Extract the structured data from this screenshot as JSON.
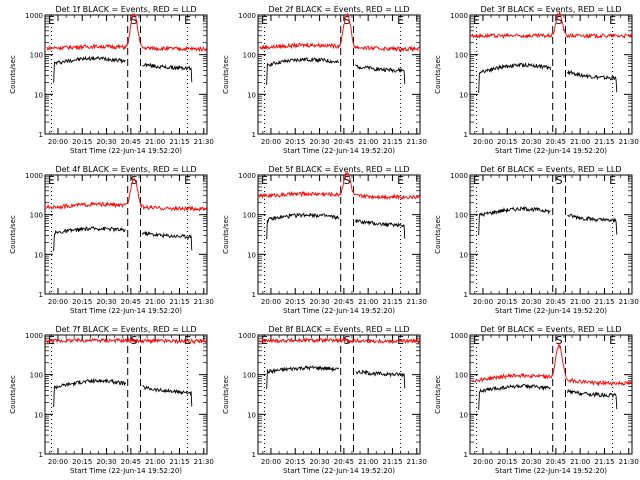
{
  "chart_data": [
    {
      "type": "line",
      "title": "Det 1f BLACK = Events, RED = LLD",
      "xlabel": "Start Time (22-Jun-14 19:52:20)",
      "ylabel": "Counts/sec",
      "xticks": [
        "20:00",
        "20:15",
        "20:30",
        "20:45",
        "21:00",
        "21:15",
        "21:30"
      ],
      "xlim": [
        "19:52",
        "21:32"
      ],
      "yscale": "log",
      "ylim": [
        1,
        1000
      ],
      "yticks": [
        "1",
        "10",
        "100",
        "1000"
      ],
      "markers": [
        {
          "label": "E",
          "x": "19:56"
        },
        {
          "label": "S",
          "x": "20:47"
        },
        {
          "label": "E",
          "x": "21:20"
        }
      ],
      "series": [
        {
          "color": "#000000",
          "start": "19:57",
          "end": "21:23",
          "base": "45",
          "hump_x": "20:23",
          "hump_h": "1.8",
          "gap": [
            "20:42",
            "20:52"
          ],
          "peak": "0"
        },
        {
          "color": "#ff0000",
          "start": "19:53",
          "end": "21:32",
          "base": "140",
          "hump_x": "20:25",
          "hump_h": "1.15",
          "gap": null,
          "peak": "900"
        }
      ]
    },
    {
      "type": "line",
      "title": "Det 2f BLACK = Events, RED = LLD",
      "xlabel": "Start Time (22-Jun-14 19:52:20)",
      "ylabel": "Counts/sec",
      "xticks": [
        "20:00",
        "20:15",
        "20:30",
        "20:45",
        "21:00",
        "21:15",
        "21:30"
      ],
      "xlim": [
        "19:52",
        "21:32"
      ],
      "yscale": "log",
      "ylim": [
        1,
        1000
      ],
      "yticks": [
        "1",
        "10",
        "100",
        "1000"
      ],
      "markers": [
        {
          "label": "E",
          "x": "19:56"
        },
        {
          "label": "S",
          "x": "20:47"
        },
        {
          "label": "E",
          "x": "21:20"
        }
      ],
      "series": [
        {
          "color": "#000000",
          "start": "19:57",
          "end": "21:23",
          "base": "40",
          "hump_x": "20:23",
          "hump_h": "1.9",
          "gap": [
            "20:42",
            "20:52"
          ],
          "peak": "0"
        },
        {
          "color": "#ff0000",
          "start": "19:53",
          "end": "21:32",
          "base": "140",
          "hump_x": "20:25",
          "hump_h": "1.25",
          "gap": null,
          "peak": "900"
        }
      ]
    },
    {
      "type": "line",
      "title": "Det 3f BLACK = Events, RED = LLD",
      "xlabel": "Start Time (22-Jun-14 19:52:20)",
      "ylabel": "Counts/sec",
      "xticks": [
        "20:00",
        "20:15",
        "20:30",
        "20:45",
        "21:00",
        "21:15",
        "21:30"
      ],
      "xlim": [
        "19:52",
        "21:32"
      ],
      "yscale": "log",
      "ylim": [
        1,
        1000
      ],
      "yticks": [
        "1",
        "10",
        "100",
        "1000"
      ],
      "markers": [
        {
          "label": "E",
          "x": "19:56"
        },
        {
          "label": "S",
          "x": "20:47"
        },
        {
          "label": "E",
          "x": "21:20"
        }
      ],
      "series": [
        {
          "color": "#000000",
          "start": "19:57",
          "end": "21:23",
          "base": "25",
          "hump_x": "20:25",
          "hump_h": "2.2",
          "gap": [
            "20:42",
            "20:52"
          ],
          "peak": "0"
        },
        {
          "color": "#ff0000",
          "start": "19:53",
          "end": "21:32",
          "base": "300",
          "hump_x": "20:25",
          "hump_h": "1.0",
          "gap": null,
          "peak": "800"
        }
      ]
    },
    {
      "type": "line",
      "title": "Det 4f BLACK = Events, RED = LLD",
      "xlabel": "Start Time (22-Jun-14 19:52:20)",
      "ylabel": "Counts/sec",
      "xticks": [
        "20:00",
        "20:15",
        "20:30",
        "20:45",
        "21:00",
        "21:15",
        "21:30"
      ],
      "xlim": [
        "19:52",
        "21:32"
      ],
      "yscale": "log",
      "ylim": [
        1,
        1000
      ],
      "yticks": [
        "1",
        "10",
        "100",
        "1000"
      ],
      "markers": [
        {
          "label": "E",
          "x": "19:56"
        },
        {
          "label": "S",
          "x": "20:47"
        },
        {
          "label": "E",
          "x": "21:20"
        }
      ],
      "series": [
        {
          "color": "#000000",
          "start": "19:57",
          "end": "21:23",
          "base": "28",
          "hump_x": "20:25",
          "hump_h": "1.6",
          "gap": [
            "20:42",
            "20:52"
          ],
          "peak": "0"
        },
        {
          "color": "#ff0000",
          "start": "19:53",
          "end": "21:32",
          "base": "140",
          "hump_x": "20:25",
          "hump_h": "1.3",
          "gap": null,
          "peak": "700"
        }
      ]
    },
    {
      "type": "line",
      "title": "Det 5f BLACK = Events, RED = LLD",
      "xlabel": "Start Time (22-Jun-14 19:52:20)",
      "ylabel": "Counts/sec",
      "xticks": [
        "20:00",
        "20:15",
        "20:30",
        "20:45",
        "21:00",
        "21:15",
        "21:30"
      ],
      "xlim": [
        "19:52",
        "21:32"
      ],
      "yscale": "log",
      "ylim": [
        1,
        1000
      ],
      "yticks": [
        "1",
        "10",
        "100",
        "1000"
      ],
      "markers": [
        {
          "label": "E",
          "x": "19:56"
        },
        {
          "label": "S",
          "x": "20:47"
        },
        {
          "label": "E",
          "x": "21:20"
        }
      ],
      "series": [
        {
          "color": "#000000",
          "start": "19:57",
          "end": "21:23",
          "base": "55",
          "hump_x": "20:23",
          "hump_h": "1.8",
          "gap": [
            "20:42",
            "20:52"
          ],
          "peak": "0"
        },
        {
          "color": "#ff0000",
          "start": "19:53",
          "end": "21:32",
          "base": "280",
          "hump_x": "20:25",
          "hump_h": "1.2",
          "gap": null,
          "peak": "900"
        }
      ]
    },
    {
      "type": "line",
      "title": "Det 6f BLACK = Events, RED = LLD",
      "xlabel": "Start Time (22-Jun-14 19:52:20)",
      "ylabel": "Counts/sec",
      "xticks": [
        "20:00",
        "20:15",
        "20:30",
        "20:45",
        "21:00",
        "21:15",
        "21:30"
      ],
      "xlim": [
        "19:52",
        "21:32"
      ],
      "yscale": "log",
      "ylim": [
        1,
        1000
      ],
      "yticks": [
        "1",
        "10",
        "100",
        "1000"
      ],
      "markers": [
        {
          "label": "E",
          "x": "19:56"
        },
        {
          "label": "S",
          "x": "20:47"
        },
        {
          "label": "E",
          "x": "21:20"
        }
      ],
      "series": [
        {
          "color": "#000000",
          "start": "19:57",
          "end": "21:23",
          "base": "70",
          "hump_x": "20:25",
          "hump_h": "2.0",
          "gap": [
            "20:42",
            "20:52"
          ],
          "peak": "0"
        }
      ]
    },
    {
      "type": "line",
      "title": "Det 7f BLACK = Events, RED = LLD",
      "xlabel": "Start Time (22-Jun-14 19:52:20)",
      "ylabel": "Counts/sec",
      "xticks": [
        "20:00",
        "20:15",
        "20:30",
        "20:45",
        "21:00",
        "21:15",
        "21:30"
      ],
      "xlim": [
        "19:52",
        "21:32"
      ],
      "yscale": "log",
      "ylim": [
        1,
        1000
      ],
      "yticks": [
        "1",
        "10",
        "100",
        "1000"
      ],
      "markers": [
        {
          "label": "E",
          "x": "19:56"
        },
        {
          "label": "S",
          "x": "20:47"
        },
        {
          "label": "E",
          "x": "21:20"
        }
      ],
      "series": [
        {
          "color": "#000000",
          "start": "19:57",
          "end": "21:23",
          "base": "35",
          "hump_x": "20:25",
          "hump_h": "2.0",
          "gap": [
            "20:42",
            "20:52"
          ],
          "peak": "0"
        },
        {
          "color": "#ff0000",
          "start": "19:53",
          "end": "21:32",
          "base": "700",
          "hump_x": "20:25",
          "hump_h": "1.05",
          "gap": null,
          "peak": "0"
        }
      ]
    },
    {
      "type": "line",
      "title": "Det 8f BLACK = Events, RED = LLD",
      "xlabel": "Start Time (22-Jun-14 19:52:20)",
      "ylabel": "Counts/sec",
      "xticks": [
        "20:00",
        "20:15",
        "20:30",
        "20:45",
        "21:00",
        "21:15",
        "21:30"
      ],
      "xlim": [
        "19:52",
        "21:32"
      ],
      "yscale": "log",
      "ylim": [
        1,
        1000
      ],
      "yticks": [
        "1",
        "10",
        "100",
        "1000"
      ],
      "markers": [
        {
          "label": "E",
          "x": "19:56"
        },
        {
          "label": "S",
          "x": "20:47"
        },
        {
          "label": "E",
          "x": "21:20"
        }
      ],
      "series": [
        {
          "color": "#000000",
          "start": "19:57",
          "end": "21:23",
          "base": "100",
          "hump_x": "20:25",
          "hump_h": "1.5",
          "gap": [
            "20:42",
            "20:52"
          ],
          "peak": "0"
        },
        {
          "color": "#ff0000",
          "start": "19:53",
          "end": "21:32",
          "base": "700",
          "hump_x": "20:25",
          "hump_h": "1.05",
          "gap": null,
          "peak": "0"
        }
      ]
    },
    {
      "type": "line",
      "title": "Det 9f BLACK = Events, RED = LLD",
      "xlabel": "Start Time (22-Jun-14 19:52:20)",
      "ylabel": "Counts/sec",
      "xticks": [
        "20:00",
        "20:15",
        "20:30",
        "20:45",
        "21:00",
        "21:15",
        "21:30"
      ],
      "xlim": [
        "19:52",
        "21:32"
      ],
      "yscale": "log",
      "ylim": [
        1,
        1000
      ],
      "yticks": [
        "1",
        "10",
        "100",
        "1000"
      ],
      "markers": [
        {
          "label": "E",
          "x": "19:56"
        },
        {
          "label": "S",
          "x": "20:47"
        },
        {
          "label": "E",
          "x": "21:20"
        }
      ],
      "series": [
        {
          "color": "#000000",
          "start": "19:57",
          "end": "21:23",
          "base": "30",
          "hump_x": "20:25",
          "hump_h": "1.7",
          "gap": [
            "20:42",
            "20:52"
          ],
          "peak": "0"
        },
        {
          "color": "#ff0000",
          "start": "19:53",
          "end": "21:32",
          "base": "60",
          "hump_x": "20:25",
          "hump_h": "1.6",
          "gap": null,
          "peak": "450"
        }
      ]
    }
  ]
}
